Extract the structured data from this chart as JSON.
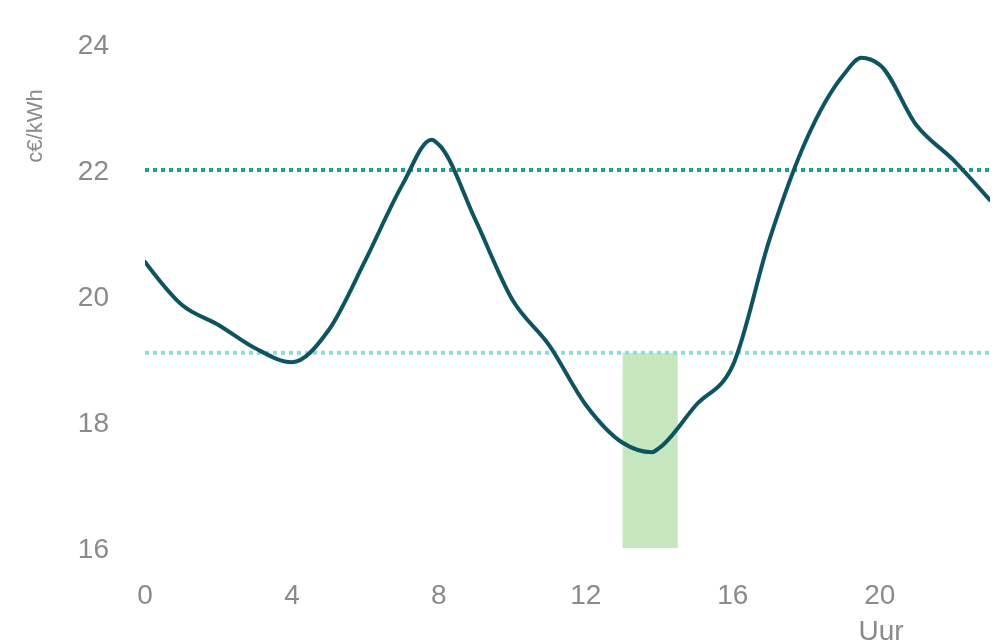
{
  "chart_data": {
    "type": "line",
    "ylabel": "c€/kWh",
    "xlabel": "Uur",
    "x": [
      0,
      1,
      2,
      3,
      4,
      5,
      6,
      7,
      7.8,
      8,
      9,
      10,
      11,
      12,
      13,
      13.8,
      14,
      15,
      16,
      17,
      18,
      19,
      19.5,
      20,
      21,
      22,
      23
    ],
    "series": [
      {
        "color": "#0d5460",
        "values": [
          20.54,
          19.86,
          19.54,
          19.17,
          18.95,
          19.46,
          20.57,
          21.76,
          22.48,
          22.4,
          21.2,
          19.94,
          19.22,
          18.27,
          17.67,
          17.52,
          17.59,
          18.27,
          18.9,
          20.9,
          22.48,
          23.5,
          23.78,
          23.67,
          22.71,
          22.16,
          21.52
        ]
      }
    ],
    "xlim": [
      0,
      23
    ],
    "xticks": [
      0,
      4,
      8,
      12,
      16,
      20
    ],
    "ylim": [
      16,
      24
    ],
    "yticks": [
      16,
      18,
      20,
      22,
      24
    ],
    "ref_lines": [
      {
        "axis": "y",
        "value": 22,
        "color": "#1e9e96",
        "line_style": "dotted"
      },
      {
        "axis": "y",
        "value": 19.1,
        "color": "#8edcd6",
        "line_style": "dotted"
      }
    ],
    "bands": [
      {
        "axis": "x",
        "from": 13,
        "to": 14.5,
        "color": "#c5e6bf"
      }
    ],
    "grid": false,
    "legend": false,
    "marker": "none",
    "line_style": "solid"
  }
}
